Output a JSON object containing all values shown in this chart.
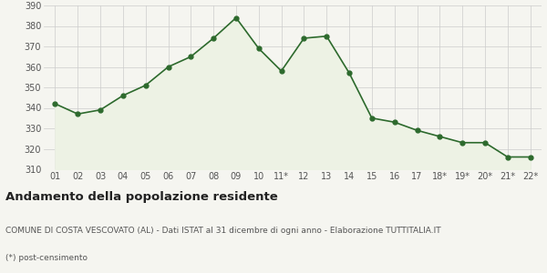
{
  "x_labels": [
    "01",
    "02",
    "03",
    "04",
    "05",
    "06",
    "07",
    "08",
    "09",
    "10",
    "11*",
    "12",
    "13",
    "14",
    "15",
    "16",
    "17",
    "18*",
    "19*",
    "20*",
    "21*",
    "22*"
  ],
  "y_values": [
    342,
    337,
    339,
    346,
    351,
    360,
    365,
    374,
    384,
    369,
    358,
    374,
    375,
    357,
    335,
    333,
    329,
    326,
    323,
    323,
    316,
    316
  ],
  "ylim": [
    310,
    390
  ],
  "yticks": [
    310,
    320,
    330,
    340,
    350,
    360,
    370,
    380,
    390
  ],
  "line_color": "#2d6a2d",
  "fill_color": "#edf2e4",
  "marker_color": "#2d6a2d",
  "bg_color": "#f5f5f0",
  "title": "Andamento della popolazione residente",
  "subtitle": "COMUNE DI COSTA VESCOVATO (AL) - Dati ISTAT al 31 dicembre di ogni anno - Elaborazione TUTTITALIA.IT",
  "footnote": "(*) post-censimento",
  "title_fontsize": 9.5,
  "subtitle_fontsize": 6.5,
  "footnote_fontsize": 6.5,
  "tick_fontsize": 7,
  "grid_color": "#cccccc"
}
